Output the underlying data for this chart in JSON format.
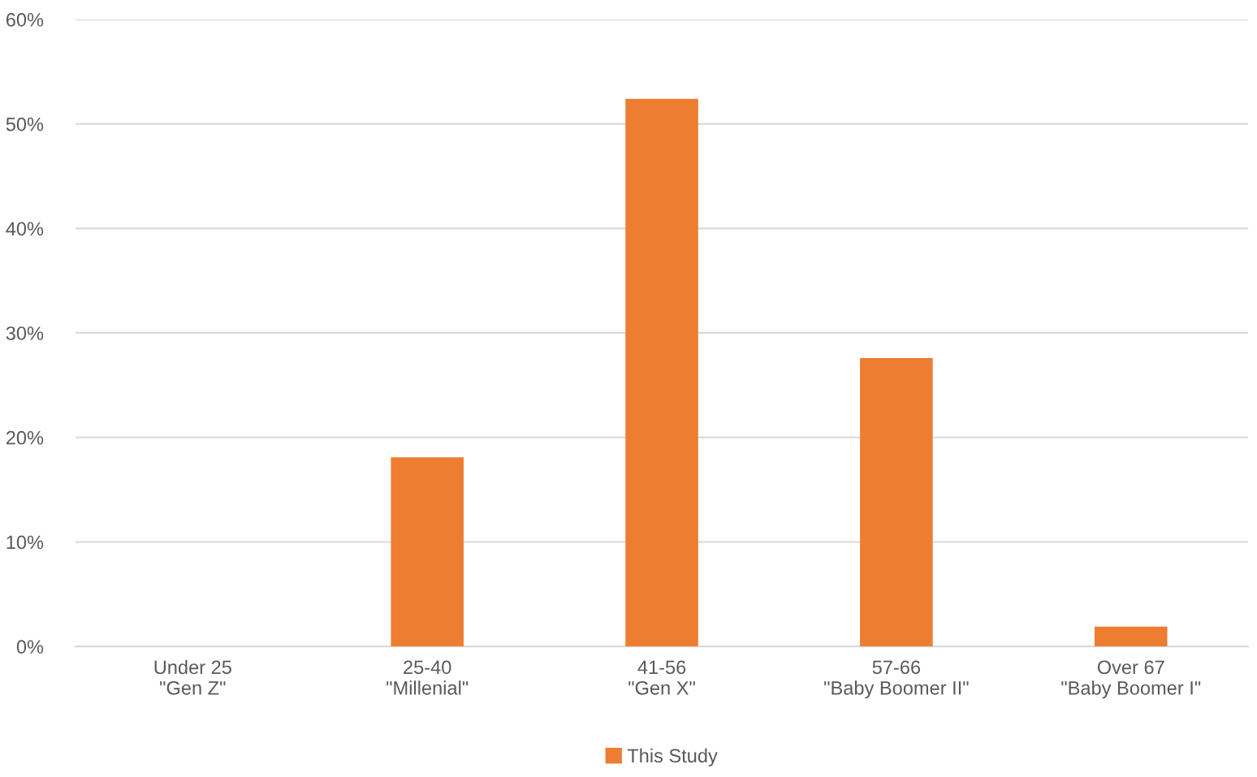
{
  "chart_data": {
    "type": "bar",
    "categories": [
      "Under 25\n\"Gen Z\"",
      "25-40\n\"Millenial\"",
      "41-56\n\"Gen X\"",
      "57-66\n\"Baby Boomer II\"",
      "Over 67\n\"Baby Boomer I\""
    ],
    "series": [
      {
        "name": "This Study",
        "color": "#ed7d31",
        "values": [
          0,
          18.1,
          52.4,
          27.6,
          1.9
        ]
      }
    ],
    "ylim": [
      0,
      60
    ],
    "yticks": [
      {
        "value": 0,
        "label": "0%"
      },
      {
        "value": 10,
        "label": "10%"
      },
      {
        "value": 20,
        "label": "20%"
      },
      {
        "value": 30,
        "label": "30%"
      },
      {
        "value": 40,
        "label": "40%"
      },
      {
        "value": 50,
        "label": "50%"
      },
      {
        "value": 60,
        "label": "60%"
      }
    ],
    "grid": "y",
    "legend": "bottom"
  }
}
